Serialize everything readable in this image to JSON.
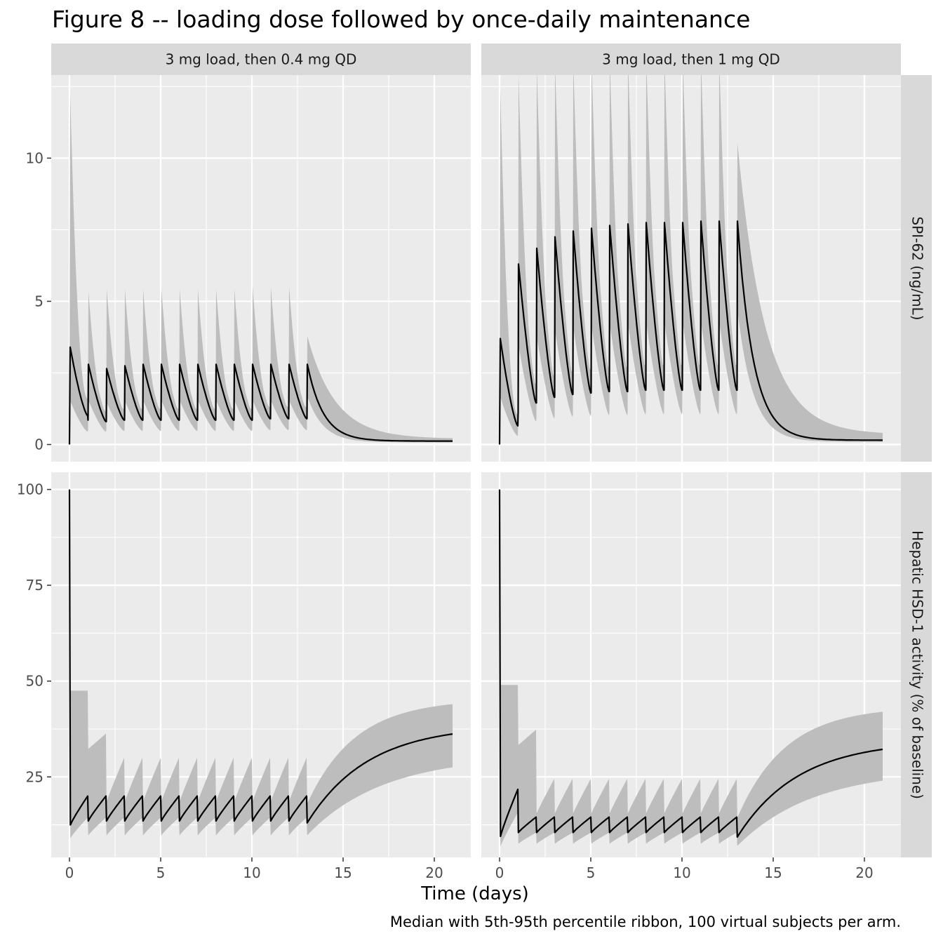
{
  "title": "Figure 8 -- loading dose followed by once-daily maintenance",
  "caption": "Median with 5th-95th percentile ribbon, 100 virtual subjects per arm.",
  "colors": {
    "panel_bg": "#ebebeb",
    "strip_bg": "#d9d9d9",
    "grid": "#ffffff",
    "ribbon": "#bdbdbd",
    "line": "#000000"
  },
  "chart_data": {
    "type": "line",
    "layout": "facet-grid 2x2",
    "xlabel": "Time (days)",
    "xlim": [
      -1,
      22
    ],
    "x_ticks": [
      0,
      5,
      10,
      15,
      20
    ],
    "x_tick_labels": [
      "0",
      "5",
      "10",
      "15",
      "20"
    ],
    "columns": [
      "3 mg load, then 0.4 mg QD",
      "3 mg load, then 1 mg QD"
    ],
    "rows": [
      {
        "label": "SPI-62 (ng/mL)",
        "ylim": [
          -0.6,
          12.9
        ],
        "y_ticks": [
          0,
          5,
          10
        ],
        "y_tick_labels": [
          "0",
          "5",
          "10"
        ],
        "y_minor": [
          2.5,
          7.5,
          12.5
        ]
      },
      {
        "label": "Hepatic HSD-1 activity (% of baseline)",
        "ylim": [
          4.0,
          104.5
        ],
        "y_ticks": [
          25,
          50,
          75,
          100
        ],
        "y_tick_labels": [
          "25",
          "50",
          "75",
          "100"
        ],
        "y_minor": [
          12.5,
          37.5,
          62.5,
          87.5
        ]
      }
    ],
    "series": [
      {
        "row": 0,
        "col": 0,
        "median_peak": 3.4,
        "median_trough": 1.0,
        "load_peak_p95": 12.3,
        "load_trough_p5": 0.15,
        "maint_peaks": [
          2.8,
          2.65,
          2.75,
          2.8,
          2.8,
          2.8,
          2.8,
          2.8,
          2.8,
          2.8,
          2.8,
          2.8
        ],
        "maint_troughs": [
          0.85,
          0.8,
          0.85,
          0.85,
          0.85,
          0.85,
          0.85,
          0.85,
          0.85,
          0.85,
          0.9,
          0.9
        ],
        "maint_p95_peak": 4.2,
        "maint_p5_trough": 0.45,
        "terminal_median_day21": 0.12,
        "terminal_p95_day21": 0.2
      },
      {
        "row": 0,
        "col": 1,
        "median_peak": 3.7,
        "median_trough": 0.65,
        "load_peak_p95": 12.4,
        "load_trough_p5": 0.05,
        "maint_peaks": [
          6.3,
          6.85,
          7.25,
          7.45,
          7.55,
          7.65,
          7.7,
          7.75,
          7.75,
          7.75,
          7.8,
          7.8
        ],
        "maint_troughs": [
          1.15,
          1.45,
          1.65,
          1.75,
          1.8,
          1.85,
          1.85,
          1.9,
          1.9,
          1.9,
          1.9,
          1.9
        ],
        "maint_p95_peak": 10.8,
        "maint_p5_trough": 1.0,
        "terminal_median_day21": 0.15,
        "terminal_p95_day21": 0.35
      },
      {
        "row": 1,
        "col": 0,
        "baseline": 100,
        "median_nadir": 12.5,
        "median_recovery_peak": 20.0,
        "p95_load_plateau": 47.5,
        "p95_day21": 44.0,
        "p5_day21": 27.5,
        "median_day21": 36.2,
        "nadir_day13": 13.0
      },
      {
        "row": 1,
        "col": 1,
        "baseline": 100,
        "median_nadir": 9.5,
        "median_recovery_peak": 14.5,
        "p95_load_plateau": 49.0,
        "p95_day21": 42.0,
        "p5_day21": 24.0,
        "median_day21": 32.2,
        "nadir_day13": 9.3
      }
    ]
  }
}
